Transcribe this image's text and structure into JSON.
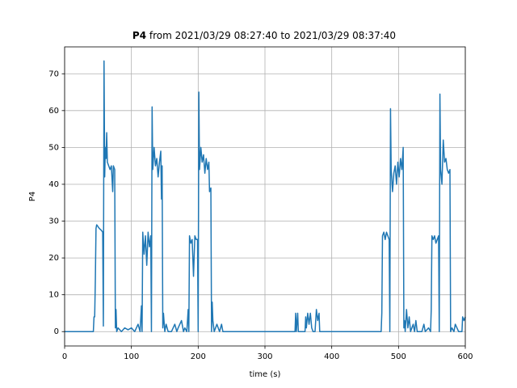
{
  "chart_data": {
    "type": "line",
    "title": {
      "bold": "P4",
      "rest": "from 2021/03/29 08:27:40 to 2021/03/29 08:37:40"
    },
    "xlabel": "time (s)",
    "ylabel": "P4",
    "xlim": [
      0,
      600
    ],
    "ylim": [
      -3.9,
      77.3
    ],
    "xticks": [
      0,
      100,
      200,
      300,
      400,
      500,
      600
    ],
    "yticks": [
      0,
      10,
      20,
      30,
      40,
      50,
      60,
      70
    ],
    "grid": true,
    "x": [
      0,
      43,
      44,
      45,
      46,
      47,
      48,
      52,
      55,
      57,
      58,
      59,
      60,
      61,
      62,
      63,
      64,
      66,
      68,
      70,
      72,
      73,
      75,
      76,
      77,
      78,
      80,
      85,
      90,
      95,
      100,
      105,
      110,
      113,
      115,
      116,
      117,
      119,
      121,
      123,
      125,
      127,
      129,
      130,
      131,
      132,
      134,
      136,
      138,
      140,
      142,
      144,
      145,
      146,
      147,
      148,
      150,
      152,
      155,
      160,
      165,
      168,
      170,
      175,
      178,
      180,
      183,
      185,
      186,
      187,
      189,
      191,
      193,
      195,
      197,
      199,
      200,
      201,
      202,
      204,
      206,
      208,
      210,
      212,
      214,
      216,
      217,
      219,
      220,
      221,
      222,
      224,
      228,
      232,
      235,
      237,
      345,
      346,
      347,
      349,
      350,
      360,
      361,
      362,
      364,
      366,
      368,
      370,
      372,
      375,
      377,
      379,
      381,
      382,
      474,
      475,
      476,
      478,
      480,
      482,
      484,
      486,
      487,
      488,
      489,
      491,
      493,
      495,
      497,
      499,
      501,
      503,
      505,
      507,
      508,
      509,
      510,
      512,
      514,
      516,
      518,
      522,
      524,
      526,
      528,
      535,
      538,
      540,
      545,
      548,
      549,
      550,
      552,
      554,
      556,
      558,
      560,
      561,
      562,
      563,
      565,
      567,
      569,
      571,
      573,
      575,
      577,
      578,
      580,
      583,
      585,
      590,
      595,
      596,
      598,
      600
    ],
    "series": [
      {
        "name": "P4",
        "color": "#1f77b4",
        "values": [
          0,
          0,
          4,
          4,
          14,
          28,
          29,
          28,
          27.5,
          27,
          1.5,
          73.5,
          42,
          50,
          47,
          54,
          46,
          45,
          44,
          45,
          38,
          45,
          44,
          1,
          6,
          0,
          1,
          0,
          1,
          0.5,
          1,
          0,
          2,
          0,
          7,
          0,
          27,
          21,
          26,
          18,
          27,
          23,
          26,
          0,
          61,
          44,
          50,
          45,
          47,
          42,
          46,
          49,
          36,
          45,
          1,
          5,
          0,
          2,
          0,
          0,
          2,
          0,
          1,
          3,
          0,
          1,
          0,
          6,
          0,
          26,
          24,
          25,
          15,
          26,
          25,
          25,
          0,
          65,
          44,
          50,
          46,
          48,
          43,
          47,
          44,
          46,
          38,
          39,
          0,
          8,
          3,
          0,
          2,
          0,
          2,
          0,
          0,
          5,
          0,
          5,
          0,
          0,
          4,
          1,
          5,
          2,
          5,
          1,
          0,
          0,
          6,
          3,
          5,
          0,
          0,
          5,
          26,
          27,
          25,
          27,
          26,
          25,
          0,
          60.5,
          44,
          38,
          43,
          45,
          40,
          46,
          42,
          47,
          44,
          50,
          1,
          3,
          0,
          6,
          1,
          4,
          0,
          2,
          0,
          3,
          0,
          0,
          2,
          0,
          1,
          0,
          6,
          26,
          25,
          26,
          24,
          25,
          26,
          0,
          64.5,
          44,
          40,
          52,
          46,
          47,
          44,
          43,
          44,
          0,
          1,
          0,
          2,
          0,
          0,
          4,
          3,
          4
        ]
      }
    ]
  }
}
